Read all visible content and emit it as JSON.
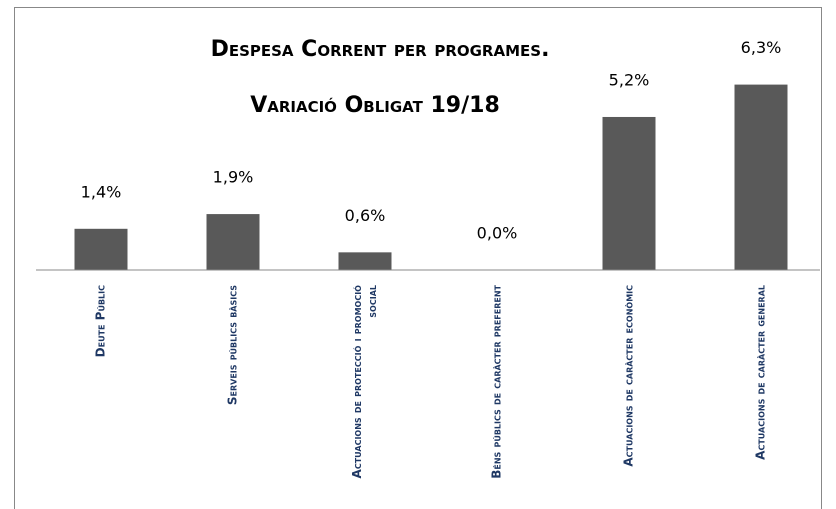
{
  "chart_data": {
    "type": "bar",
    "title": [
      "Despesa Corrent per programes.",
      "Variació Obligat 19/18"
    ],
    "categories": [
      "Deute Públic",
      "Serveis públics bàsics",
      "Actuacions de protecció i promoció social",
      "Béns públics de caràcter preferent",
      "Actuacions de caràcter econòmic",
      "Actuacions de caràcter general"
    ],
    "values": [
      1.4,
      1.9,
      0.6,
      0.0,
      5.2,
      6.3
    ],
    "value_labels": [
      "1,4%",
      "1,9%",
      "0,6%",
      "0,0%",
      "5,2%",
      "6,3%"
    ],
    "color": "#595959",
    "ylim": [
      0,
      7
    ]
  }
}
